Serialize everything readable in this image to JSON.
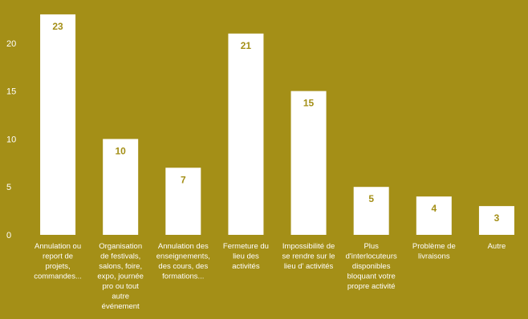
{
  "chart_data": {
    "type": "bar",
    "categories": [
      [
        "Annulation ou",
        "report de",
        "projets,",
        "commandes..."
      ],
      [
        "Organisation",
        "de festivals,",
        "salons, foire,",
        "expo, journée",
        "pro ou tout",
        "autre",
        "événement"
      ],
      [
        "Annulation des",
        "enseignements,",
        "des cours, des",
        "formations..."
      ],
      [
        "Fermeture du",
        "lieu des",
        "activités"
      ],
      [
        "Impossibilité de",
        "se rendre sur le",
        "lieu d' activités"
      ],
      [
        "Plus",
        "d'interlocuteurs",
        "disponibles",
        "bloquant votre",
        "propre activité"
      ],
      [
        "Problème de",
        "livraisons"
      ],
      [
        "Autre"
      ]
    ],
    "values": [
      23,
      10,
      7,
      21,
      15,
      5,
      4,
      3
    ],
    "data_labels": [
      "23",
      "10",
      "7",
      "21",
      "15",
      "5",
      "4",
      "3"
    ],
    "y_ticks": [
      "0",
      "5",
      "10",
      "15",
      "20"
    ],
    "ylim": [
      0,
      24.5
    ],
    "grid": false,
    "legend": "none",
    "colors": {
      "background": "#A48F17",
      "bar": "#FFFFFF",
      "label": "#A48F17",
      "text": "#FFFFFF"
    }
  }
}
